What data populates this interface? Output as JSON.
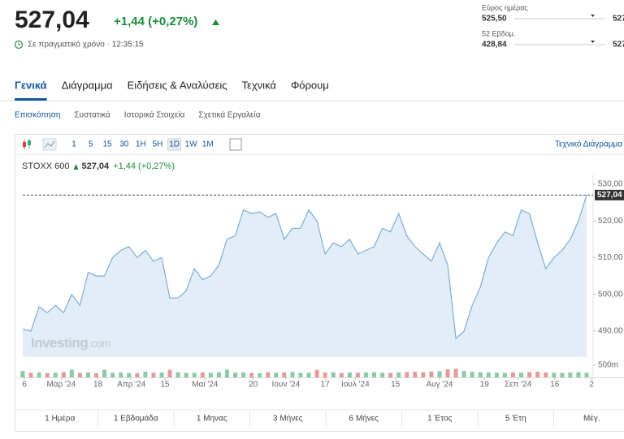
{
  "header": {
    "price": "527,04",
    "change": "+1,44 (+0,27%)",
    "realtime": "Σε πραγματικό χρόνο · 12:35:15"
  },
  "ranges": [
    {
      "label": "Εύρος ημέρας",
      "low": "525,50",
      "high": "527"
    },
    {
      "label": "52 Εβδομ.",
      "low": "428,84",
      "high": "527"
    }
  ],
  "tabs": [
    "Γενικά",
    "Διάγραμμα",
    "Ειδήσεις & Αναλύσεις",
    "Τεχνικά",
    "Φόρουμ"
  ],
  "subtabs": [
    "Επισκόπηση",
    "Συστατικά",
    "Ιστορικά Στοιχεία",
    "Σχετικά Εργαλεία"
  ],
  "intervals": [
    "1",
    "5",
    "15",
    "30",
    "1H",
    "5H",
    "1D",
    "1W",
    "1M"
  ],
  "technical_link": "Τεχνικό Διάγραμμα",
  "legend": {
    "name": "STOXX 600",
    "price": "527,04",
    "change": "+1,44 (+0,27%)"
  },
  "watermark": {
    "brand": "Investing",
    "suffix": ".com"
  },
  "periods": [
    "1 Ημέρα",
    "1 Εβδομάδα",
    "1 Μηνας",
    "3 Μήνες",
    "6 Μήνες",
    "1 Έτος",
    "5 Έτη",
    "Μέγ."
  ],
  "chart_data": {
    "type": "line",
    "color": "#7aaed8",
    "fill": "#e3edf7",
    "values": [
      490.5,
      490,
      496.6,
      495,
      497,
      495,
      500,
      497,
      506,
      505,
      505,
      510,
      512,
      513,
      510,
      512,
      509,
      510,
      499,
      499,
      501,
      507,
      504,
      505,
      508,
      515,
      516,
      523,
      522,
      522.5,
      521,
      522,
      515,
      518,
      518,
      523,
      520,
      511,
      514,
      513,
      515,
      511,
      512,
      513,
      518,
      517,
      522,
      516,
      513,
      511,
      509,
      514,
      508,
      488,
      490,
      497,
      502,
      510,
      514,
      517,
      516,
      523,
      522,
      514,
      507,
      510,
      512,
      515,
      520,
      527.04
    ],
    "xlim": [
      0,
      69
    ],
    "xticks": [
      {
        "value": 0.2,
        "label": "6"
      },
      {
        "value": 4.7,
        "label": "Μαρ '24"
      },
      {
        "value": 9.2,
        "label": "18"
      },
      {
        "value": 13.3,
        "label": "Απρ '24"
      },
      {
        "value": 17.4,
        "label": "15"
      },
      {
        "value": 22.3,
        "label": "Μαϊ '24"
      },
      {
        "value": 28.2,
        "label": "20"
      },
      {
        "value": 32.2,
        "label": "Ιουν '24"
      },
      {
        "value": 37.0,
        "label": "17"
      },
      {
        "value": 40.7,
        "label": "Ιουλ '24"
      },
      {
        "value": 45.6,
        "label": "15"
      },
      {
        "value": 51.0,
        "label": "Αυγ '24"
      },
      {
        "value": 56.5,
        "label": "19"
      },
      {
        "value": 60.6,
        "label": "Σεπ '24"
      },
      {
        "value": 65.1,
        "label": "16"
      },
      {
        "value": 69.6,
        "label": "2"
      }
    ],
    "ylim": [
      482.93,
      531.55
    ],
    "yticks": [
      {
        "value": 490,
        "label": "490,00"
      },
      {
        "value": 500,
        "label": "500,00"
      },
      {
        "value": 510,
        "label": "510,00"
      },
      {
        "value": 520,
        "label": "520,00"
      },
      {
        "value": 530,
        "label": "530,00"
      }
    ],
    "last_price": {
      "value": 527.04,
      "label": "527,04"
    },
    "volume": {
      "values": [
        260,
        180,
        200,
        170,
        190,
        210,
        320,
        180,
        200,
        170,
        310,
        190,
        200,
        180,
        170,
        230,
        190,
        200,
        310,
        210,
        180,
        190,
        200,
        180,
        210,
        320,
        190,
        200,
        180,
        170,
        210,
        190,
        200,
        220,
        180,
        190,
        310,
        200,
        210,
        180,
        200,
        190,
        200,
        210,
        190,
        180,
        200,
        220,
        230,
        210,
        240,
        250,
        330,
        350,
        260,
        230,
        210,
        200,
        190,
        180,
        200,
        190,
        210,
        230,
        200,
        190,
        180,
        200,
        210,
        190
      ],
      "ylim": [
        0,
        500
      ],
      "yticks": [
        {
          "value": 500,
          "label": "500m"
        }
      ],
      "up_color": "#8cc9a8",
      "down_color": "#e59a9a"
    }
  }
}
